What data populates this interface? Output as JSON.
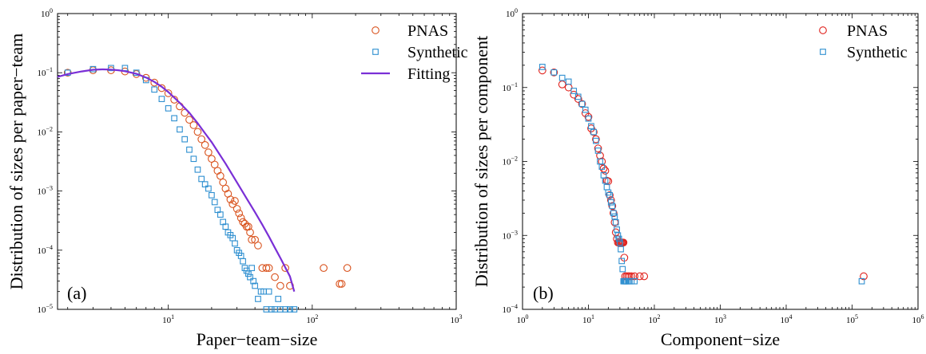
{
  "chart_data": [
    {
      "type": "scatter",
      "panel_label": "(a)",
      "xlabel": "Paper−team−size",
      "ylabel": "Distribution of sizes per paper−team",
      "xscale": "log",
      "yscale": "log",
      "xlim": [
        1.7,
        1000
      ],
      "ylim": [
        1e-05,
        1
      ],
      "xticks": [
        {
          "value": 10,
          "label": "10",
          "exp": "1"
        },
        {
          "value": 100,
          "label": "10",
          "exp": "2"
        },
        {
          "value": 1000,
          "label": "10",
          "exp": "3"
        }
      ],
      "yticks": [
        {
          "value": 1e-05,
          "label": "10",
          "exp": "−5"
        },
        {
          "value": 0.0001,
          "label": "10",
          "exp": "−4"
        },
        {
          "value": 0.001,
          "label": "10",
          "exp": "−3"
        },
        {
          "value": 0.01,
          "label": "10",
          "exp": "−2"
        },
        {
          "value": 0.1,
          "label": "10",
          "exp": "−1"
        },
        {
          "value": 1,
          "label": "10",
          "exp": "0"
        }
      ],
      "legend_position": "top-right",
      "series": [
        {
          "name": "PNAS",
          "marker": "circle",
          "color": "#d9531e",
          "x": [
            2,
            3,
            4,
            5,
            6,
            7,
            8,
            9,
            10,
            11,
            12,
            13,
            14,
            15,
            16,
            17,
            18,
            19,
            20,
            21,
            22,
            23,
            24,
            25,
            26,
            27,
            28,
            29,
            30,
            31,
            32,
            33,
            34,
            35,
            36,
            37,
            38,
            40,
            42,
            45,
            48,
            50,
            55,
            60,
            65,
            70,
            120,
            155,
            160,
            175
          ],
          "y": [
            0.1,
            0.11,
            0.11,
            0.105,
            0.095,
            0.082,
            0.068,
            0.055,
            0.045,
            0.035,
            0.027,
            0.021,
            0.016,
            0.013,
            0.01,
            0.0075,
            0.006,
            0.0045,
            0.0035,
            0.0028,
            0.0022,
            0.0018,
            0.0014,
            0.0011,
            0.0009,
            0.00072,
            0.0006,
            0.00068,
            0.0005,
            0.00042,
            0.00035,
            0.0003,
            0.00028,
            0.00025,
            0.00025,
            0.0002,
            0.00015,
            0.00015,
            0.00012,
            5e-05,
            5e-05,
            5e-05,
            3.5e-05,
            2.5e-05,
            5e-05,
            2.5e-05,
            5e-05,
            2.7e-05,
            2.7e-05,
            5e-05
          ]
        },
        {
          "name": "Synthetic",
          "marker": "square",
          "color": "#2e8fd0",
          "x": [
            2,
            3,
            4,
            5,
            6,
            7,
            8,
            9,
            10,
            11,
            12,
            13,
            14,
            15,
            16,
            17,
            18,
            19,
            20,
            21,
            22,
            23,
            24,
            25,
            26,
            27,
            28,
            29,
            30,
            31,
            32,
            33,
            34,
            35,
            36,
            37,
            38,
            39,
            40,
            42,
            44,
            46,
            48,
            50,
            52,
            55,
            58,
            60,
            65,
            70,
            75
          ],
          "y": [
            0.1,
            0.115,
            0.12,
            0.12,
            0.1,
            0.075,
            0.052,
            0.036,
            0.025,
            0.017,
            0.011,
            0.0075,
            0.005,
            0.0035,
            0.0023,
            0.0016,
            0.0013,
            0.0011,
            0.00085,
            0.00065,
            0.00048,
            0.0004,
            0.0003,
            0.00025,
            0.0002,
            0.00018,
            0.00016,
            0.00013,
            0.0001,
            9e-05,
            8e-05,
            6.5e-05,
            5e-05,
            4.5e-05,
            4e-05,
            3.5e-05,
            5e-05,
            3e-05,
            2.5e-05,
            1.5e-05,
            2e-05,
            2e-05,
            1e-05,
            2e-05,
            1e-05,
            1e-05,
            1.5e-05,
            1e-05,
            1e-05,
            1e-05,
            1e-05
          ]
        },
        {
          "name": "Fitting",
          "type": "line",
          "color": "#7a2fd6",
          "x": [
            1.7,
            2,
            2.5,
            3,
            3.5,
            4,
            4.5,
            5,
            6,
            7,
            8,
            9,
            10,
            12,
            14,
            16,
            18,
            20,
            25,
            30,
            35,
            40,
            45,
            50,
            55,
            60,
            65,
            70,
            75
          ],
          "y": [
            0.085,
            0.095,
            0.105,
            0.112,
            0.114,
            0.113,
            0.11,
            0.106,
            0.096,
            0.083,
            0.07,
            0.058,
            0.047,
            0.031,
            0.021,
            0.014,
            0.0095,
            0.0067,
            0.0029,
            0.0014,
            0.00075,
            0.00044,
            0.00027,
            0.00017,
            0.00011,
            7.4e-05,
            5.1e-05,
            3.6e-05,
            2e-05
          ]
        }
      ]
    },
    {
      "type": "scatter",
      "panel_label": "(b)",
      "xlabel": "Component−size",
      "ylabel": "Distribution of sizes per component",
      "xscale": "log",
      "yscale": "log",
      "xlim": [
        1,
        1000000
      ],
      "ylim": [
        0.0001,
        1
      ],
      "xticks": [
        {
          "value": 1,
          "label": "10",
          "exp": "0"
        },
        {
          "value": 10,
          "label": "10",
          "exp": "1"
        },
        {
          "value": 100,
          "label": "10",
          "exp": "2"
        },
        {
          "value": 1000,
          "label": "10",
          "exp": "3"
        },
        {
          "value": 10000,
          "label": "10",
          "exp": "4"
        },
        {
          "value": 100000,
          "label": "10",
          "exp": "5"
        },
        {
          "value": 1000000,
          "label": "10",
          "exp": "6"
        }
      ],
      "yticks": [
        {
          "value": 0.0001,
          "label": "10",
          "exp": "−4"
        },
        {
          "value": 0.001,
          "label": "10",
          "exp": "−3"
        },
        {
          "value": 0.01,
          "label": "10",
          "exp": "−2"
        },
        {
          "value": 0.1,
          "label": "10",
          "exp": "−1"
        },
        {
          "value": 1,
          "label": "10",
          "exp": "0"
        }
      ],
      "legend_position": "top-right",
      "series": [
        {
          "name": "PNAS",
          "marker": "circle",
          "color": "#e0201b",
          "x": [
            2,
            3,
            4,
            5,
            6,
            7,
            8,
            9,
            10,
            11,
            12,
            13,
            14,
            15,
            16,
            17,
            18,
            19,
            20,
            21,
            22,
            23,
            24,
            25,
            26,
            27,
            28,
            29,
            30,
            31,
            32,
            33,
            34,
            35,
            36,
            38,
            40,
            42,
            45,
            50,
            60,
            70,
            150000
          ],
          "y": [
            0.17,
            0.16,
            0.11,
            0.1,
            0.08,
            0.07,
            0.06,
            0.045,
            0.04,
            0.028,
            0.025,
            0.02,
            0.015,
            0.012,
            0.01,
            0.008,
            0.0075,
            0.0055,
            0.0054,
            0.0035,
            0.003,
            0.0025,
            0.002,
            0.0015,
            0.0011,
            0.0009,
            0.0008,
            0.0008,
            0.0008,
            0.0008,
            0.0008,
            0.0008,
            0.0008,
            0.0005,
            0.00028,
            0.00028,
            0.00028,
            0.00028,
            0.00028,
            0.00028,
            0.00028,
            0.00028,
            0.00028
          ]
        },
        {
          "name": "Synthetic",
          "marker": "square",
          "color": "#2e8fd0",
          "x": [
            2,
            3,
            4,
            5,
            6,
            7,
            8,
            9,
            10,
            11,
            12,
            13,
            14,
            15,
            16,
            17,
            18,
            19,
            20,
            21,
            22,
            23,
            24,
            25,
            26,
            27,
            28,
            29,
            30,
            31,
            32,
            33,
            34,
            35,
            36,
            37,
            38,
            40,
            42,
            45,
            50,
            140000
          ],
          "y": [
            0.19,
            0.16,
            0.135,
            0.12,
            0.09,
            0.075,
            0.06,
            0.05,
            0.038,
            0.03,
            0.025,
            0.019,
            0.014,
            0.01,
            0.0085,
            0.0065,
            0.0055,
            0.0045,
            0.0038,
            0.0035,
            0.0028,
            0.0025,
            0.002,
            0.0018,
            0.0015,
            0.0012,
            0.001,
            0.0009,
            0.0008,
            0.00065,
            0.00045,
            0.00035,
            0.00024,
            0.00024,
            0.00024,
            0.00024,
            0.00024,
            0.00024,
            0.00024,
            0.00024,
            0.00024,
            0.00024
          ]
        }
      ]
    }
  ]
}
